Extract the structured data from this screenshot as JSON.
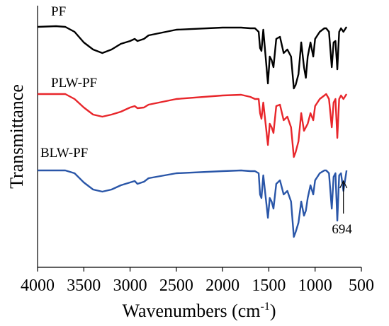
{
  "chart_data": {
    "type": "line",
    "ylabel": "Transmittance",
    "xlabel": [
      "Wavenumbers (cm",
      "-1",
      ")"
    ],
    "x": [
      4000,
      3800,
      3700,
      3600,
      3500,
      3400,
      3300,
      3200,
      3100,
      3000,
      2950,
      2920,
      2850,
      2800,
      2500,
      2000,
      1800,
      1700,
      1650,
      1610,
      1595,
      1580,
      1560,
      1510,
      1490,
      1470,
      1450,
      1420,
      1380,
      1340,
      1300,
      1260,
      1230,
      1210,
      1180,
      1150,
      1120,
      1100,
      1080,
      1050,
      1020,
      1000,
      950,
      900,
      880,
      850,
      820,
      800,
      780,
      760,
      740,
      720,
      694,
      660
    ],
    "xlim": [
      4000,
      500
    ],
    "xticks": [
      4000,
      3500,
      3000,
      2500,
      2000,
      1500,
      1000,
      500
    ],
    "ylim": [
      0,
      370
    ],
    "series": [
      {
        "name": "PF",
        "color": "#000000",
        "values": [
          340,
          341,
          340,
          333,
          318,
          308,
          303,
          308,
          316,
          320,
          323,
          320,
          323,
          328,
          336,
          339,
          339,
          338,
          338,
          333,
          310,
          306,
          336,
          260,
          298,
          293,
          283,
          323,
          326,
          303,
          308,
          298,
          253,
          258,
          273,
          318,
          283,
          268,
          298,
          318,
          298,
          323,
          333,
          338,
          338,
          333,
          283,
          318,
          320,
          280,
          333,
          338,
          333,
          340
        ]
      },
      {
        "name": "PLW-PF",
        "color": "#e8262b",
        "values": [
          245,
          245,
          245,
          238,
          226,
          216,
          213,
          216,
          220,
          226,
          228,
          225,
          226,
          230,
          238,
          243,
          244,
          241,
          238,
          238,
          218,
          210,
          233,
          173,
          203,
          198,
          190,
          228,
          230,
          208,
          213,
          198,
          156,
          163,
          178,
          218,
          193,
          198,
          203,
          218,
          208,
          228,
          238,
          243,
          245,
          238,
          198,
          233,
          238,
          183,
          238,
          243,
          238,
          245
        ]
      },
      {
        "name": "BLW-PF",
        "color": "#2a56a8",
        "values": [
          137,
          137,
          137,
          133,
          120,
          110,
          107,
          110,
          116,
          120,
          122,
          118,
          121,
          126,
          133,
          136,
          137,
          136,
          136,
          133,
          103,
          98,
          130,
          70,
          98,
          93,
          83,
          118,
          123,
          103,
          108,
          93,
          43,
          50,
          63,
          93,
          73,
          80,
          98,
          116,
          103,
          123,
          133,
          137,
          137,
          133,
          83,
          128,
          133,
          66,
          130,
          133,
          108,
          137
        ]
      }
    ],
    "annotations": [
      {
        "x": 694,
        "text": "694"
      }
    ]
  }
}
